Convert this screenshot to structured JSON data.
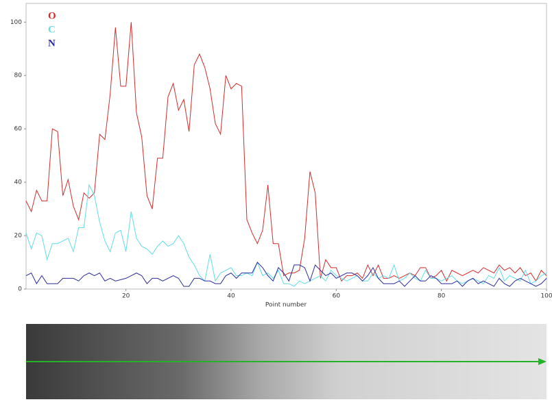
{
  "chart_data": {
    "type": "line",
    "x_label": "Point number",
    "x": [
      1,
      2,
      3,
      4,
      5,
      6,
      7,
      8,
      9,
      10,
      11,
      12,
      13,
      14,
      15,
      16,
      17,
      18,
      19,
      20,
      21,
      22,
      23,
      24,
      25,
      26,
      27,
      28,
      29,
      30,
      31,
      32,
      33,
      34,
      35,
      36,
      37,
      38,
      39,
      40,
      41,
      42,
      43,
      44,
      45,
      46,
      47,
      48,
      49,
      50,
      51,
      52,
      53,
      54,
      55,
      56,
      57,
      58,
      59,
      60,
      61,
      62,
      63,
      64,
      65,
      66,
      67,
      68,
      69,
      70,
      71,
      72,
      73,
      74,
      75,
      76,
      77,
      78,
      79,
      80,
      81,
      82,
      83,
      84,
      85,
      86,
      87,
      88,
      89,
      90,
      91,
      92,
      93,
      94,
      95,
      96,
      97,
      98,
      99,
      100
    ],
    "series": [
      {
        "name": "O",
        "color": "#d42a2a",
        "values": [
          33,
          29,
          37,
          33,
          33,
          60,
          59,
          35,
          41,
          31,
          26,
          36,
          34,
          36,
          58,
          56,
          73,
          98,
          76,
          76,
          100,
          66,
          57,
          35,
          30,
          49,
          49,
          72,
          77,
          67,
          71,
          59,
          84,
          88,
          83,
          75,
          62,
          58,
          80,
          75,
          77,
          76,
          26,
          21,
          17,
          22,
          39,
          17,
          17,
          5,
          6,
          6,
          7,
          19,
          44,
          36,
          4,
          11,
          8,
          8,
          3,
          5,
          5,
          6,
          4,
          9,
          5,
          9,
          4,
          4,
          5,
          4,
          5,
          6,
          5,
          8,
          8,
          4,
          5,
          7,
          3,
          7,
          6,
          5,
          6,
          7,
          6,
          8,
          7,
          6,
          9,
          7,
          8,
          6,
          8,
          5,
          6,
          3,
          7,
          5
        ]
      },
      {
        "name": "C",
        "color": "#5fdde8",
        "values": [
          21,
          15,
          21,
          20,
          11,
          17,
          17,
          18,
          19,
          14,
          23,
          23,
          39,
          35,
          25,
          18,
          14,
          21,
          22,
          14,
          29,
          19,
          16,
          15,
          13,
          16,
          18,
          16,
          17,
          20,
          17,
          12,
          9,
          5,
          3,
          13,
          3,
          6,
          7,
          8,
          5,
          5,
          6,
          5,
          10,
          5,
          6,
          4,
          7,
          2,
          2,
          1,
          3,
          2,
          3,
          4,
          5,
          3,
          7,
          5,
          4,
          3,
          4,
          5,
          3,
          3,
          6,
          4,
          5,
          4,
          9,
          3,
          4,
          6,
          4,
          3,
          7,
          4,
          4,
          3,
          4,
          5,
          3,
          2,
          3,
          4,
          3,
          2,
          5,
          4,
          8,
          3,
          5,
          4,
          3,
          7,
          2,
          3,
          5,
          6
        ]
      },
      {
        "name": "N",
        "color": "#2a2aa0",
        "values": [
          5,
          6,
          2,
          5,
          2,
          2,
          2,
          4,
          4,
          4,
          3,
          5,
          6,
          5,
          6,
          3,
          4,
          3,
          3.5,
          4,
          5,
          6,
          5,
          2,
          4,
          4,
          3,
          4,
          5,
          4,
          1,
          1,
          4,
          4,
          3,
          3,
          2,
          2,
          5,
          6,
          4,
          6,
          6,
          6,
          10,
          8,
          5,
          3,
          8,
          6,
          3,
          9,
          9,
          8,
          3,
          9,
          7,
          5,
          6,
          4,
          5,
          6,
          6,
          5,
          3,
          5,
          8,
          4,
          2,
          2,
          2,
          3,
          1,
          3,
          5,
          3,
          3,
          5,
          4,
          2,
          2,
          2,
          3,
          1,
          3,
          4,
          2,
          3,
          2,
          1,
          4,
          2,
          1,
          3,
          4,
          3,
          2,
          1,
          2,
          4
        ]
      }
    ],
    "xlim": [
      1,
      100
    ],
    "xticks": [
      20,
      40,
      60,
      80,
      100
    ],
    "ylim": [
      0,
      107
    ],
    "yticks": [
      0,
      20,
      40,
      60,
      80,
      100
    ],
    "legend": "upper-left"
  }
}
